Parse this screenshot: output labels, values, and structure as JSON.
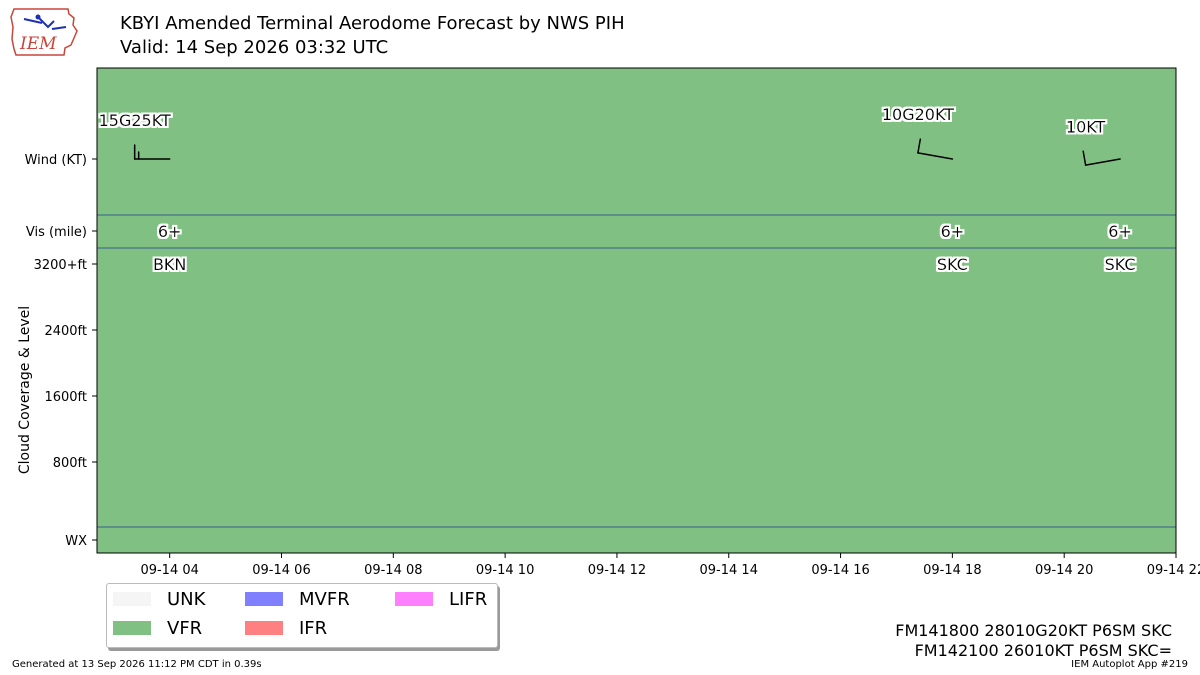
{
  "logo": {
    "text": "IEM"
  },
  "title": {
    "line1": "KBYI Amended Terminal Aerodome Forecast by NWS PIH",
    "line2": "Valid: 14 Sep 2026 03:32 UTC"
  },
  "colors": {
    "background": "#80c183",
    "separator": "#3a5d8f",
    "UNK": "#f5f5f5",
    "VFR": "#80c183",
    "MVFR": "#8080ff",
    "IFR": "#ff8080",
    "LIFR": "#ff80ff"
  },
  "chart_data": {
    "type": "timeline",
    "flight_category": "VFR",
    "xlim": [
      "2026-09-14 02:42",
      "2026-09-14 22:00"
    ],
    "x_ticks": [
      "09-14 04",
      "09-14 06",
      "09-14 08",
      "09-14 10",
      "09-14 12",
      "09-14 14",
      "09-14 16",
      "09-14 18",
      "09-14 20",
      "09-14 22"
    ],
    "row_labels": {
      "wind": "Wind (KT)",
      "vis": "Vis (mile)",
      "wx": "WX"
    },
    "y_axis_label": "Cloud Coverage & Level",
    "cloud_ticks": [
      "3200+ft",
      "2400ft",
      "1600ft",
      "800ft"
    ],
    "periods": [
      {
        "time": "2026-09-14 04:00",
        "wind_dir": 270,
        "wind_label": "15G25KT",
        "vis": "6+",
        "cloud": "BKN"
      },
      {
        "time": "2026-09-14 18:00",
        "wind_dir": 280,
        "wind_label": "10G20KT",
        "vis": "6+",
        "cloud": "SKC"
      },
      {
        "time": "2026-09-14 21:00",
        "wind_dir": 260,
        "wind_label": "10KT",
        "vis": "6+",
        "cloud": "SKC"
      }
    ]
  },
  "legend": [
    {
      "key": "UNK",
      "label": "UNK"
    },
    {
      "key": "MVFR",
      "label": "MVFR"
    },
    {
      "key": "LIFR",
      "label": "LIFR"
    },
    {
      "key": "VFR",
      "label": "VFR"
    },
    {
      "key": "IFR",
      "label": "IFR"
    }
  ],
  "raw_taf": [
    "FM141800 28010G20KT P6SM SKC",
    "FM142100 26010KT P6SM SKC="
  ],
  "footer": {
    "generated": "Generated at 13 Sep 2026 11:12 PM CDT in 0.39s",
    "app": "IEM Autoplot App #219"
  }
}
